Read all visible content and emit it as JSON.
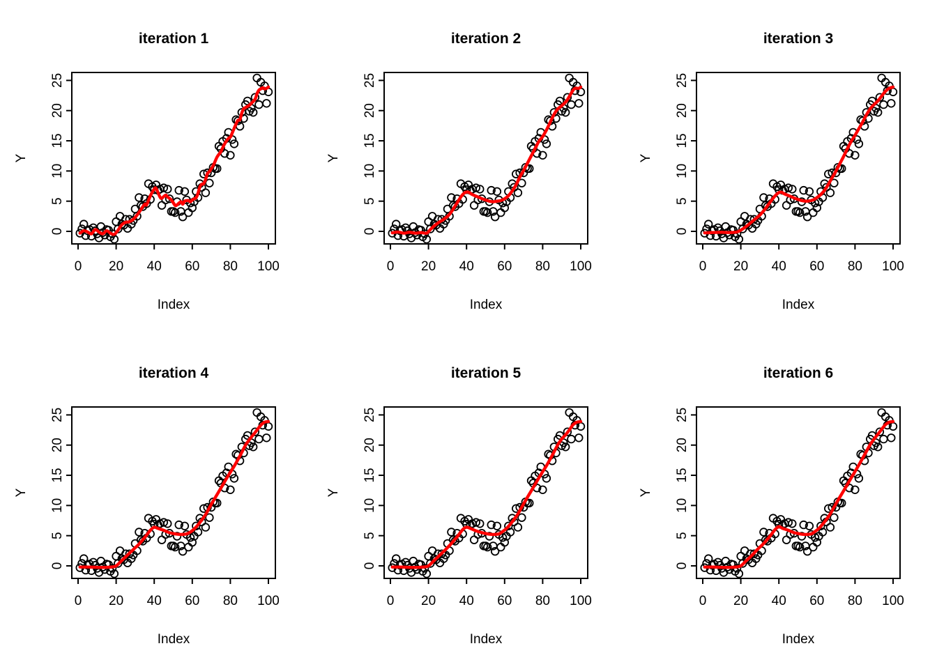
{
  "figure": {
    "background": "#ffffff",
    "foreground": "#000000",
    "smooth_line_color": "#ff0000",
    "rows": 2,
    "cols": 3
  },
  "chart_data": {
    "type": "scatter",
    "layout": "2x3 grid of panels, same scatter data in every panel, red smoother curve differs per iteration",
    "shared": {
      "xlabel": "Index",
      "ylabel": "Y",
      "x_ticks": [
        0,
        20,
        40,
        60,
        80,
        100
      ],
      "y_ticks": [
        0,
        5,
        10,
        15,
        20,
        25
      ],
      "xlim": [
        -3,
        104
      ],
      "ylim": [
        -2.1,
        26.3
      ],
      "grid": false,
      "legend": false,
      "point_style": "open-circle",
      "scatter_x": [
        1,
        2,
        3,
        4,
        5,
        6,
        7,
        8,
        9,
        10,
        11,
        12,
        13,
        14,
        15,
        16,
        17,
        18,
        19,
        20,
        21,
        22,
        23,
        24,
        25,
        26,
        27,
        28,
        29,
        30,
        31,
        32,
        33,
        34,
        35,
        36,
        37,
        38,
        39,
        40,
        41,
        42,
        43,
        44,
        45,
        46,
        47,
        48,
        49,
        50,
        51,
        52,
        53,
        54,
        55,
        56,
        57,
        58,
        59,
        60,
        61,
        62,
        63,
        64,
        65,
        66,
        67,
        68,
        69,
        70,
        71,
        72,
        73,
        74,
        75,
        76,
        77,
        78,
        79,
        80,
        81,
        82,
        83,
        84,
        85,
        86,
        87,
        88,
        89,
        90,
        91,
        92,
        93,
        94,
        95,
        96,
        97,
        98,
        99,
        100
      ],
      "scatter_y": [
        -0.3,
        0.4,
        1.2,
        -0.7,
        0.1,
        0.3,
        -0.8,
        0.6,
        0.1,
        -0.4,
        -1.1,
        0.8,
        -0.2,
        -0.6,
        0.3,
        0.2,
        -0.9,
        -0.4,
        -1.3,
        1.6,
        0.4,
        2.5,
        1.2,
        1.0,
        2.0,
        0.5,
        2.0,
        1.2,
        1.8,
        3.7,
        2.5,
        5.6,
        4.3,
        4.1,
        5.4,
        4.6,
        7.9,
        5.3,
        7.4,
        6.9,
        7.7,
        6.8,
        7.0,
        4.3,
        7.2,
        5.2,
        7.0,
        5.4,
        3.3,
        3.3,
        3.1,
        4.9,
        6.8,
        3.3,
        2.4,
        6.6,
        5.2,
        3.1,
        4.7,
        3.9,
        4.9,
        6.6,
        5.6,
        7.9,
        7.3,
        9.5,
        6.4,
        9.7,
        8.0,
        9.7,
        10.6,
        10.4,
        10.4,
        14.1,
        13.7,
        14.9,
        12.9,
        15.4,
        16.4,
        12.6,
        15.2,
        14.5,
        18.5,
        18.3,
        17.4,
        19.7,
        18.7,
        21.0,
        21.6,
        19.9,
        20.4,
        19.7,
        22.2,
        25.4,
        21.0,
        24.7,
        23.3,
        24.1,
        21.2,
        23.1
      ]
    },
    "panels": [
      {
        "title": "iteration 1",
        "smooth": [
          [
            1,
            -0.3
          ],
          [
            3,
            0.1
          ],
          [
            5,
            -0.1
          ],
          [
            7,
            -0.4
          ],
          [
            9,
            0.3
          ],
          [
            11,
            -0.1
          ],
          [
            13,
            -0.4
          ],
          [
            15,
            0.1
          ],
          [
            17,
            -0.3
          ],
          [
            19,
            -0.5
          ],
          [
            21,
            0.2
          ],
          [
            23,
            1.1
          ],
          [
            25,
            1.5
          ],
          [
            27,
            1.6
          ],
          [
            29,
            2.0
          ],
          [
            31,
            2.7
          ],
          [
            33,
            3.6
          ],
          [
            35,
            4.5
          ],
          [
            36,
            4.4
          ],
          [
            38,
            5.9
          ],
          [
            40,
            7.0
          ],
          [
            41,
            7.1
          ],
          [
            43,
            5.7
          ],
          [
            44,
            5.5
          ],
          [
            46,
            6.0
          ],
          [
            47,
            5.7
          ],
          [
            49,
            5.2
          ],
          [
            51,
            4.3
          ],
          [
            52,
            4.4
          ],
          [
            54,
            4.9
          ],
          [
            55,
            4.5
          ],
          [
            56,
            5.0
          ],
          [
            58,
            5.1
          ],
          [
            59,
            4.9
          ],
          [
            60,
            5.2
          ],
          [
            62,
            5.6
          ],
          [
            63,
            6.3
          ],
          [
            64,
            7.4
          ],
          [
            65,
            7.8
          ],
          [
            66,
            7.9
          ],
          [
            67,
            8.6
          ],
          [
            68,
            9.6
          ],
          [
            69,
            9.9
          ],
          [
            71,
            10.9
          ],
          [
            73,
            12.3
          ],
          [
            75,
            13.2
          ],
          [
            77,
            14.5
          ],
          [
            79,
            15.4
          ],
          [
            80,
            15.6
          ],
          [
            81,
            16.3
          ],
          [
            83,
            17.8
          ],
          [
            84,
            18.4
          ],
          [
            85,
            18.5
          ],
          [
            86,
            19.6
          ],
          [
            87,
            20.3
          ],
          [
            88,
            20.5
          ],
          [
            90,
            20.9
          ],
          [
            91,
            21.2
          ],
          [
            93,
            21.9
          ],
          [
            94,
            22.8
          ],
          [
            95,
            23.4
          ],
          [
            96,
            23.6
          ],
          [
            97,
            23.8
          ],
          [
            98,
            23.6
          ],
          [
            99,
            23.7
          ],
          [
            100,
            23.9
          ]
        ]
      },
      {
        "title": "iteration 2",
        "smooth": [
          [
            1,
            -0.25
          ],
          [
            4,
            -0.1
          ],
          [
            7,
            -0.3
          ],
          [
            10,
            -0.15
          ],
          [
            13,
            -0.3
          ],
          [
            16,
            -0.2
          ],
          [
            19,
            -0.3
          ],
          [
            21,
            0.3
          ],
          [
            23,
            0.9
          ],
          [
            25,
            1.4
          ],
          [
            28,
            2.0
          ],
          [
            31,
            2.8
          ],
          [
            34,
            4.2
          ],
          [
            37,
            5.7
          ],
          [
            39,
            6.4
          ],
          [
            41,
            6.5
          ],
          [
            43,
            6.1
          ],
          [
            46,
            5.7
          ],
          [
            49,
            5.3
          ],
          [
            52,
            5.0
          ],
          [
            54,
            4.9
          ],
          [
            56,
            5.0
          ],
          [
            58,
            5.1
          ],
          [
            60,
            5.4
          ],
          [
            62,
            5.9
          ],
          [
            64,
            6.7
          ],
          [
            66,
            7.7
          ],
          [
            68,
            9.0
          ],
          [
            70,
            10.1
          ],
          [
            72,
            11.3
          ],
          [
            74,
            12.5
          ],
          [
            76,
            13.7
          ],
          [
            78,
            14.9
          ],
          [
            80,
            15.7
          ],
          [
            82,
            16.8
          ],
          [
            84,
            18.1
          ],
          [
            86,
            19.4
          ],
          [
            88,
            20.3
          ],
          [
            90,
            20.8
          ],
          [
            92,
            21.4
          ],
          [
            93,
            21.8
          ],
          [
            95,
            22.9
          ],
          [
            96,
            23.4
          ],
          [
            97,
            23.7
          ],
          [
            99,
            23.7
          ],
          [
            100,
            23.9
          ]
        ]
      },
      {
        "title": "iteration 3",
        "smooth": [
          [
            1,
            -0.25
          ],
          [
            5,
            -0.2
          ],
          [
            10,
            -0.15
          ],
          [
            14,
            -0.2
          ],
          [
            18,
            -0.1
          ],
          [
            21,
            0.4
          ],
          [
            24,
            1.1
          ],
          [
            27,
            1.9
          ],
          [
            30,
            2.7
          ],
          [
            33,
            3.8
          ],
          [
            36,
            5.1
          ],
          [
            39,
            6.2
          ],
          [
            41,
            6.5
          ],
          [
            43,
            6.2
          ],
          [
            46,
            5.8
          ],
          [
            49,
            5.4
          ],
          [
            52,
            5.1
          ],
          [
            55,
            5.0
          ],
          [
            58,
            5.2
          ],
          [
            60,
            5.6
          ],
          [
            62,
            6.1
          ],
          [
            64,
            6.8
          ],
          [
            66,
            7.8
          ],
          [
            68,
            8.9
          ],
          [
            70,
            10.0
          ],
          [
            72,
            11.2
          ],
          [
            74,
            12.4
          ],
          [
            76,
            13.7
          ],
          [
            78,
            14.9
          ],
          [
            80,
            15.9
          ],
          [
            82,
            17.0
          ],
          [
            84,
            18.1
          ],
          [
            86,
            19.3
          ],
          [
            88,
            20.3
          ],
          [
            90,
            21.0
          ],
          [
            92,
            21.6
          ],
          [
            94,
            22.4
          ],
          [
            96,
            23.2
          ],
          [
            98,
            23.7
          ],
          [
            100,
            23.9
          ]
        ]
      },
      {
        "title": "iteration 4",
        "smooth": [
          [
            1,
            -0.2
          ],
          [
            6,
            -0.2
          ],
          [
            12,
            -0.25
          ],
          [
            17,
            -0.2
          ],
          [
            20,
            0.0
          ],
          [
            23,
            0.9
          ],
          [
            26,
            1.8
          ],
          [
            29,
            2.7
          ],
          [
            32,
            3.6
          ],
          [
            35,
            4.7
          ],
          [
            38,
            5.9
          ],
          [
            40,
            6.4
          ],
          [
            42,
            6.2
          ],
          [
            45,
            5.9
          ],
          [
            48,
            5.5
          ],
          [
            51,
            5.3
          ],
          [
            54,
            5.2
          ],
          [
            57,
            5.3
          ],
          [
            59,
            5.6
          ],
          [
            61,
            6.1
          ],
          [
            63,
            6.8
          ],
          [
            65,
            7.6
          ],
          [
            67,
            8.5
          ],
          [
            70,
            10.2
          ],
          [
            73,
            11.8
          ],
          [
            76,
            13.4
          ],
          [
            79,
            15.0
          ],
          [
            82,
            16.5
          ],
          [
            85,
            18.2
          ],
          [
            88,
            20.0
          ],
          [
            90,
            20.9
          ],
          [
            92,
            21.7
          ],
          [
            94,
            22.5
          ],
          [
            96,
            23.3
          ],
          [
            98,
            23.8
          ],
          [
            100,
            23.9
          ]
        ]
      },
      {
        "title": "iteration 5",
        "smooth": [
          [
            1,
            -0.2
          ],
          [
            6,
            -0.2
          ],
          [
            12,
            -0.25
          ],
          [
            17,
            -0.2
          ],
          [
            20,
            0.0
          ],
          [
            23,
            0.9
          ],
          [
            26,
            1.8
          ],
          [
            29,
            2.7
          ],
          [
            32,
            3.7
          ],
          [
            35,
            4.8
          ],
          [
            38,
            6.0
          ],
          [
            40,
            6.4
          ],
          [
            42,
            6.2
          ],
          [
            45,
            5.8
          ],
          [
            48,
            5.5
          ],
          [
            51,
            5.3
          ],
          [
            54,
            5.2
          ],
          [
            57,
            5.3
          ],
          [
            59,
            5.7
          ],
          [
            61,
            6.2
          ],
          [
            63,
            6.9
          ],
          [
            65,
            7.7
          ],
          [
            67,
            8.6
          ],
          [
            70,
            10.3
          ],
          [
            73,
            11.9
          ],
          [
            76,
            13.5
          ],
          [
            79,
            15.1
          ],
          [
            82,
            16.6
          ],
          [
            85,
            18.3
          ],
          [
            88,
            20.1
          ],
          [
            90,
            21.0
          ],
          [
            92,
            21.7
          ],
          [
            94,
            22.5
          ],
          [
            96,
            23.4
          ],
          [
            98,
            23.8
          ],
          [
            100,
            23.9
          ]
        ]
      },
      {
        "title": "iteration 6",
        "smooth": [
          [
            1,
            -0.2
          ],
          [
            6,
            -0.2
          ],
          [
            12,
            -0.25
          ],
          [
            17,
            -0.2
          ],
          [
            20,
            0.0
          ],
          [
            23,
            0.9
          ],
          [
            26,
            1.8
          ],
          [
            29,
            2.8
          ],
          [
            32,
            3.7
          ],
          [
            35,
            4.8
          ],
          [
            38,
            6.0
          ],
          [
            40,
            6.5
          ],
          [
            42,
            6.2
          ],
          [
            45,
            5.9
          ],
          [
            48,
            5.5
          ],
          [
            51,
            5.3
          ],
          [
            54,
            5.2
          ],
          [
            57,
            5.3
          ],
          [
            59,
            5.7
          ],
          [
            61,
            6.2
          ],
          [
            63,
            6.9
          ],
          [
            65,
            7.7
          ],
          [
            67,
            8.6
          ],
          [
            70,
            10.3
          ],
          [
            73,
            11.9
          ],
          [
            76,
            13.5
          ],
          [
            79,
            15.1
          ],
          [
            82,
            16.7
          ],
          [
            85,
            18.4
          ],
          [
            88,
            20.1
          ],
          [
            90,
            21.0
          ],
          [
            92,
            21.8
          ],
          [
            94,
            22.6
          ],
          [
            96,
            23.4
          ],
          [
            98,
            23.8
          ],
          [
            100,
            23.9
          ]
        ]
      }
    ]
  }
}
